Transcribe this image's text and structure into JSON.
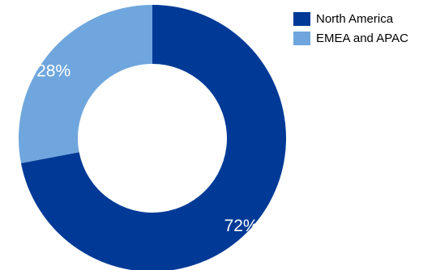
{
  "chart_data": {
    "type": "pie",
    "variant": "donut",
    "title": "",
    "series": [
      {
        "name": "North America",
        "value": 72,
        "label": "72%",
        "color": "#003a96"
      },
      {
        "name": "EMEA and APAC",
        "value": 28,
        "label": "28%",
        "color": "#6fa6dd"
      }
    ],
    "start_angle_deg": 0,
    "direction": "clockwise",
    "legend_position": "top-right"
  }
}
